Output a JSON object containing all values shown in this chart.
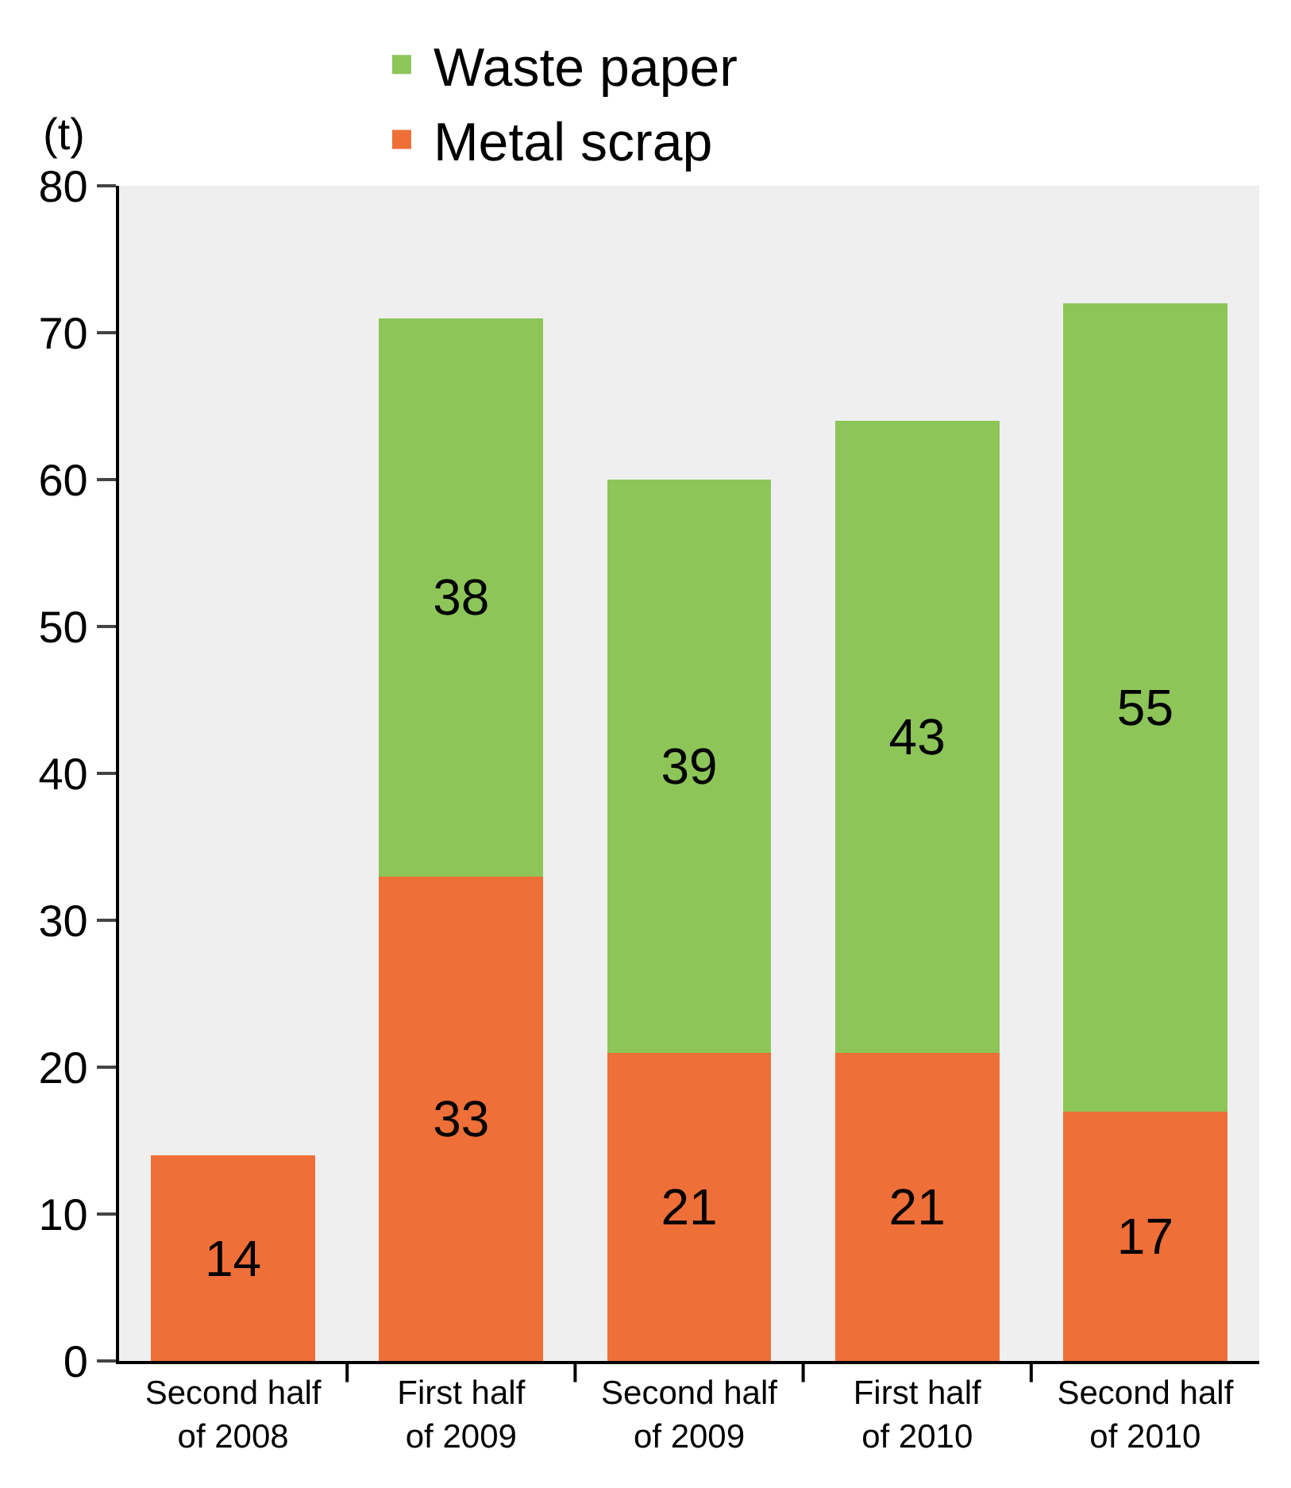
{
  "chart_data": {
    "type": "bar",
    "stacked": true,
    "ylabel": "(t)",
    "categories": [
      "Second half\nof 2008",
      "First half\nof 2009",
      "Second half\nof 2009",
      "First half\nof 2010",
      "Second half\nof 2010"
    ],
    "series": [
      {
        "name": "Metal scrap",
        "color": "#ee6f38",
        "values": [
          14,
          33,
          21,
          21,
          17
        ]
      },
      {
        "name": "Waste paper",
        "color": "#8dc559",
        "values": [
          null,
          38,
          39,
          43,
          55
        ]
      }
    ],
    "ylim": [
      0,
      80
    ],
    "yticks": [
      0,
      10,
      20,
      30,
      40,
      50,
      60,
      70,
      80
    ],
    "data_labels": true,
    "grid": false,
    "legend": "top left"
  }
}
